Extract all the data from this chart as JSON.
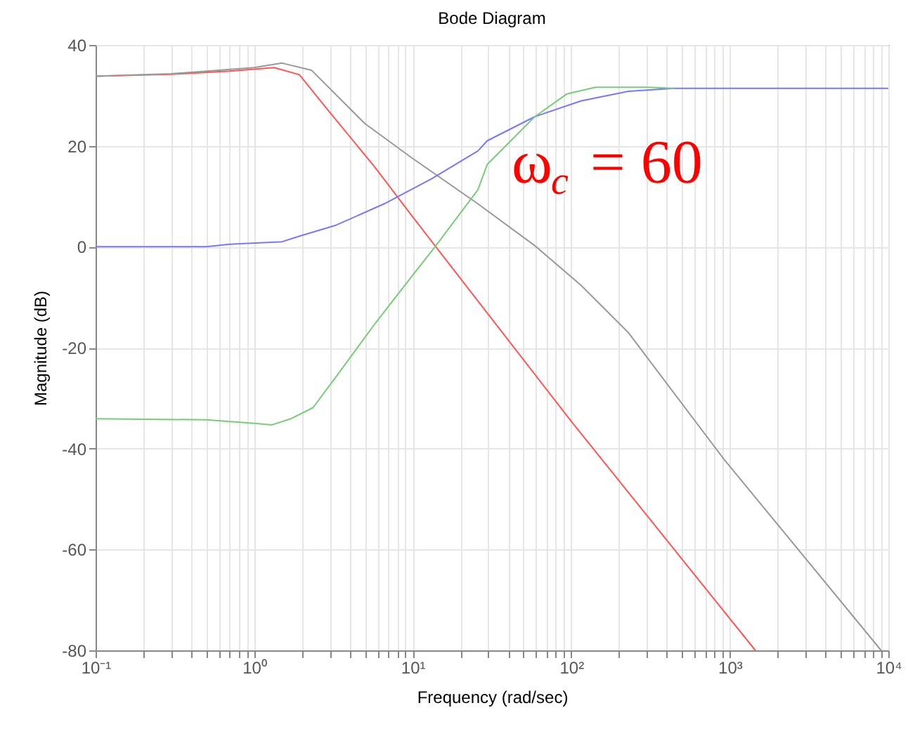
{
  "chart_data": {
    "type": "line",
    "title": "Bode Diagram",
    "xlabel": "Frequency  (rad/sec)",
    "ylabel": "Magnitude (dB)",
    "log": "x",
    "grid": true,
    "marker": "none",
    "line_style": "solid",
    "xlim": [
      0.1,
      10000
    ],
    "ylim": [
      -80,
      40
    ],
    "xticks": [
      {
        "value": 0.1,
        "label": "10⁻¹"
      },
      {
        "value": 0.2,
        "label": null
      },
      {
        "value": 0.3,
        "label": null
      },
      {
        "value": 0.4,
        "label": null
      },
      {
        "value": 0.5,
        "label": null
      },
      {
        "value": 0.6,
        "label": null
      },
      {
        "value": 0.7,
        "label": null
      },
      {
        "value": 0.8,
        "label": null
      },
      {
        "value": 0.9,
        "label": null
      },
      {
        "value": 1,
        "label": "10⁰"
      },
      {
        "value": 2,
        "label": null
      },
      {
        "value": 3,
        "label": null
      },
      {
        "value": 4,
        "label": null
      },
      {
        "value": 5,
        "label": null
      },
      {
        "value": 6,
        "label": null
      },
      {
        "value": 7,
        "label": null
      },
      {
        "value": 8,
        "label": null
      },
      {
        "value": 9,
        "label": null
      },
      {
        "value": 10,
        "label": "10¹"
      },
      {
        "value": 20,
        "label": null
      },
      {
        "value": 30,
        "label": null
      },
      {
        "value": 40,
        "label": null
      },
      {
        "value": 50,
        "label": null
      },
      {
        "value": 60,
        "label": null
      },
      {
        "value": 70,
        "label": null
      },
      {
        "value": 80,
        "label": null
      },
      {
        "value": 90,
        "label": null
      },
      {
        "value": 100,
        "label": "10²"
      },
      {
        "value": 200,
        "label": null
      },
      {
        "value": 300,
        "label": null
      },
      {
        "value": 400,
        "label": null
      },
      {
        "value": 500,
        "label": null
      },
      {
        "value": 600,
        "label": null
      },
      {
        "value": 700,
        "label": null
      },
      {
        "value": 800,
        "label": null
      },
      {
        "value": 900,
        "label": null
      },
      {
        "value": 1000,
        "label": "10³"
      },
      {
        "value": 2000,
        "label": null
      },
      {
        "value": 3000,
        "label": null
      },
      {
        "value": 4000,
        "label": null
      },
      {
        "value": 5000,
        "label": null
      },
      {
        "value": 6000,
        "label": null
      },
      {
        "value": 7000,
        "label": null
      },
      {
        "value": 8000,
        "label": null
      },
      {
        "value": 9000,
        "label": null
      },
      {
        "value": 10000,
        "label": "10⁴"
      }
    ],
    "yticks": [
      -80,
      -60,
      -40,
      -20,
      0,
      20,
      40
    ],
    "annotations": [
      "ω$_{c}$ = 60"
    ],
    "series": [
      {
        "color": "#ff5555",
        "x": [
          0.1,
          0.3,
          0.7,
          1.34,
          1.93,
          2.9,
          5.7,
          9.8,
          14,
          100,
          1450
        ],
        "values": [
          33.8,
          34.2,
          34.8,
          35.5,
          34.1,
          27.2,
          16,
          6.3,
          0,
          -34.6,
          -80
        ]
      },
      {
        "color": "#999999",
        "x": [
          0.1,
          0.3,
          1,
          1.5,
          2.3,
          5,
          9.8,
          25.8,
          59,
          115,
          229,
          913,
          9000
        ],
        "values": [
          33.8,
          34.3,
          35.5,
          36.4,
          35,
          24.4,
          17.7,
          8.5,
          0.2,
          -7.6,
          -17,
          -42,
          -80
        ]
      },
      {
        "color": "#7777ff",
        "x": [
          0.1,
          0.5,
          0.7,
          1.5,
          1.93,
          3.3,
          6.6,
          13.2,
          25.8,
          29.5,
          59,
          115,
          229,
          450,
          10000
        ],
        "values": [
          0,
          0,
          0.5,
          1,
          2.1,
          4.3,
          8.5,
          13.5,
          19,
          21,
          25.8,
          28.9,
          30.8,
          31.4,
          31.4
        ]
      },
      {
        "color": "#77cc77",
        "x": [
          0.1,
          0.5,
          1,
          1.3,
          1.7,
          2.35,
          3.3,
          5.8,
          9.8,
          14,
          25.8,
          29.5,
          59,
          94,
          142,
          300,
          450
        ],
        "values": [
          -34.1,
          -34.3,
          -35,
          -35.3,
          -34.1,
          -31.9,
          -25.7,
          -15.2,
          -6,
          0.2,
          11.3,
          16.3,
          25.8,
          30.3,
          31.6,
          31.6,
          31.4
        ]
      }
    ]
  }
}
